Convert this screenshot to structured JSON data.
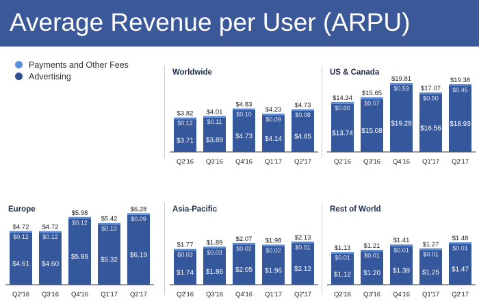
{
  "header": {
    "title": "Average Revenue per User (ARPU)"
  },
  "colors": {
    "payments": "#5b8fd9",
    "advertising": "#35579c",
    "header": "#3b5998"
  },
  "chart_data": [
    {
      "type": "bar",
      "stacked": true,
      "title": "Worldwide",
      "categories": [
        "Q2'16",
        "Q3'16",
        "Q4'16",
        "Q1'17",
        "Q2'17"
      ],
      "series": [
        {
          "name": "Advertising",
          "values": [
            3.71,
            3.89,
            4.73,
            4.14,
            4.65
          ]
        },
        {
          "name": "Payments and Other Fees",
          "values": [
            0.12,
            0.11,
            0.1,
            0.09,
            0.08
          ]
        }
      ],
      "totals": [
        "$3.82",
        "$4.01",
        "$4.83",
        "$4.23",
        "$4.73"
      ],
      "legend": "top-left",
      "grid": false
    },
    {
      "type": "bar",
      "stacked": true,
      "title": "US & Canada",
      "categories": [
        "Q2'16",
        "Q3'16",
        "Q4'16",
        "Q1'17",
        "Q2'17"
      ],
      "series": [
        {
          "name": "Advertising",
          "values": [
            13.74,
            15.08,
            19.28,
            16.56,
            18.93
          ]
        },
        {
          "name": "Payments and Other Fees",
          "values": [
            0.6,
            0.57,
            0.53,
            0.5,
            0.45
          ]
        }
      ],
      "totals": [
        "$14.34",
        "$15.65",
        "$19.81",
        "$17.07",
        "$19.38"
      ],
      "grid": false
    },
    {
      "type": "bar",
      "stacked": true,
      "title": "Europe",
      "categories": [
        "Q2'16",
        "Q3'16",
        "Q4'16",
        "Q1'17",
        "Q2'17"
      ],
      "series": [
        {
          "name": "Advertising",
          "values": [
            4.61,
            4.6,
            5.86,
            5.32,
            6.19
          ]
        },
        {
          "name": "Payments and Other Fees",
          "values": [
            0.12,
            0.12,
            0.12,
            0.1,
            0.09
          ]
        }
      ],
      "totals": [
        "$4.72",
        "$4.72",
        "$5.98",
        "$5.42",
        "$6.28"
      ],
      "grid": false
    },
    {
      "type": "bar",
      "stacked": true,
      "title": "Asia-Pacific",
      "categories": [
        "Q2'16",
        "Q3'16",
        "Q4'16",
        "Q1'17",
        "Q2'17"
      ],
      "series": [
        {
          "name": "Advertising",
          "values": [
            1.74,
            1.86,
            2.05,
            1.96,
            2.12
          ]
        },
        {
          "name": "Payments and Other Fees",
          "values": [
            0.03,
            0.03,
            0.02,
            0.02,
            0.01
          ]
        }
      ],
      "totals": [
        "$1.77",
        "$1.89",
        "$2.07",
        "$1.98",
        "$2.13"
      ],
      "grid": false
    },
    {
      "type": "bar",
      "stacked": true,
      "title": "Rest of World",
      "categories": [
        "Q2'16",
        "Q3'16",
        "Q4'16",
        "Q1'17",
        "Q2'17"
      ],
      "series": [
        {
          "name": "Advertising",
          "values": [
            1.12,
            1.2,
            1.39,
            1.25,
            1.47
          ]
        },
        {
          "name": "Payments and Other Fees",
          "values": [
            0.01,
            0.01,
            0.01,
            0.01,
            0.01
          ]
        }
      ],
      "totals": [
        "$1.13",
        "$1.21",
        "$1.41",
        "$1.27",
        "$1.48"
      ],
      "grid": false
    }
  ],
  "legend": [
    {
      "label": "Payments and Other Fees"
    },
    {
      "label": "Advertising"
    }
  ]
}
